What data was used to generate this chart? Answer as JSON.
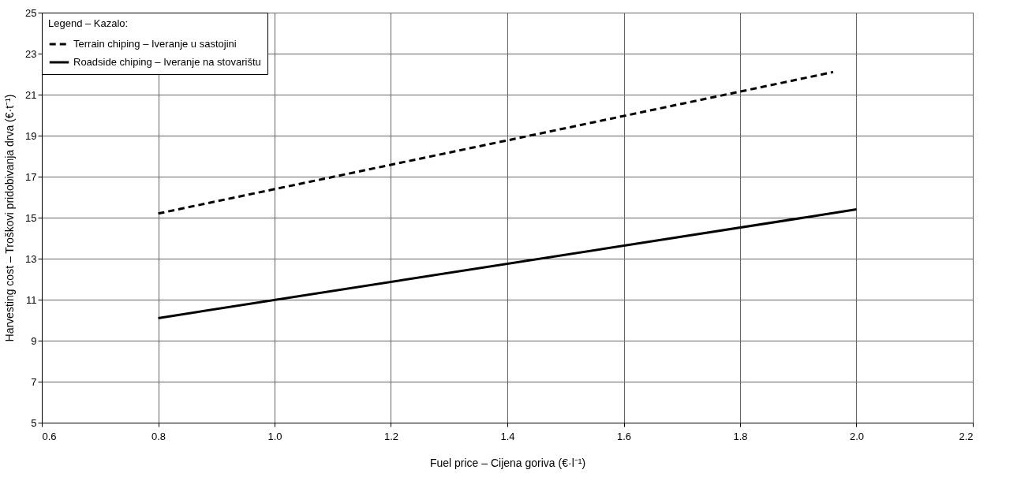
{
  "chart_data": {
    "type": "line",
    "xlabel": "Fuel price – Cijena goriva (€·l⁻¹)",
    "ylabel": "Harvesting cost – Troškovi pridobivanja drva (€·t⁻¹)",
    "legend_title": "Legend – Kazalo:",
    "legend": "top left",
    "grid": true,
    "xlim": [
      0.6,
      2.2
    ],
    "xticks": [
      0.6,
      0.8,
      {
        "value": 1,
        "label": "1.0"
      },
      1.2,
      1.4,
      1.6,
      1.8,
      {
        "value": 2,
        "label": "2.0"
      },
      2.2
    ],
    "ylim": [
      5,
      25
    ],
    "yticks": [
      5,
      7,
      9,
      11,
      13,
      15,
      17,
      19,
      21,
      23,
      25
    ],
    "series": [
      {
        "name": "Terrain chiping – Iveranje u sastojini",
        "color": "#000000",
        "line_style": "dashed",
        "x": [
          0.8,
          1.96
        ],
        "values": [
          15.2,
          22.1
        ]
      },
      {
        "name": "Roadside chiping – Iveranje na stovarištu",
        "color": "#000000",
        "line_style": "solid",
        "x": [
          0.8,
          2.0
        ],
        "values": [
          10.1,
          15.4
        ]
      }
    ]
  }
}
